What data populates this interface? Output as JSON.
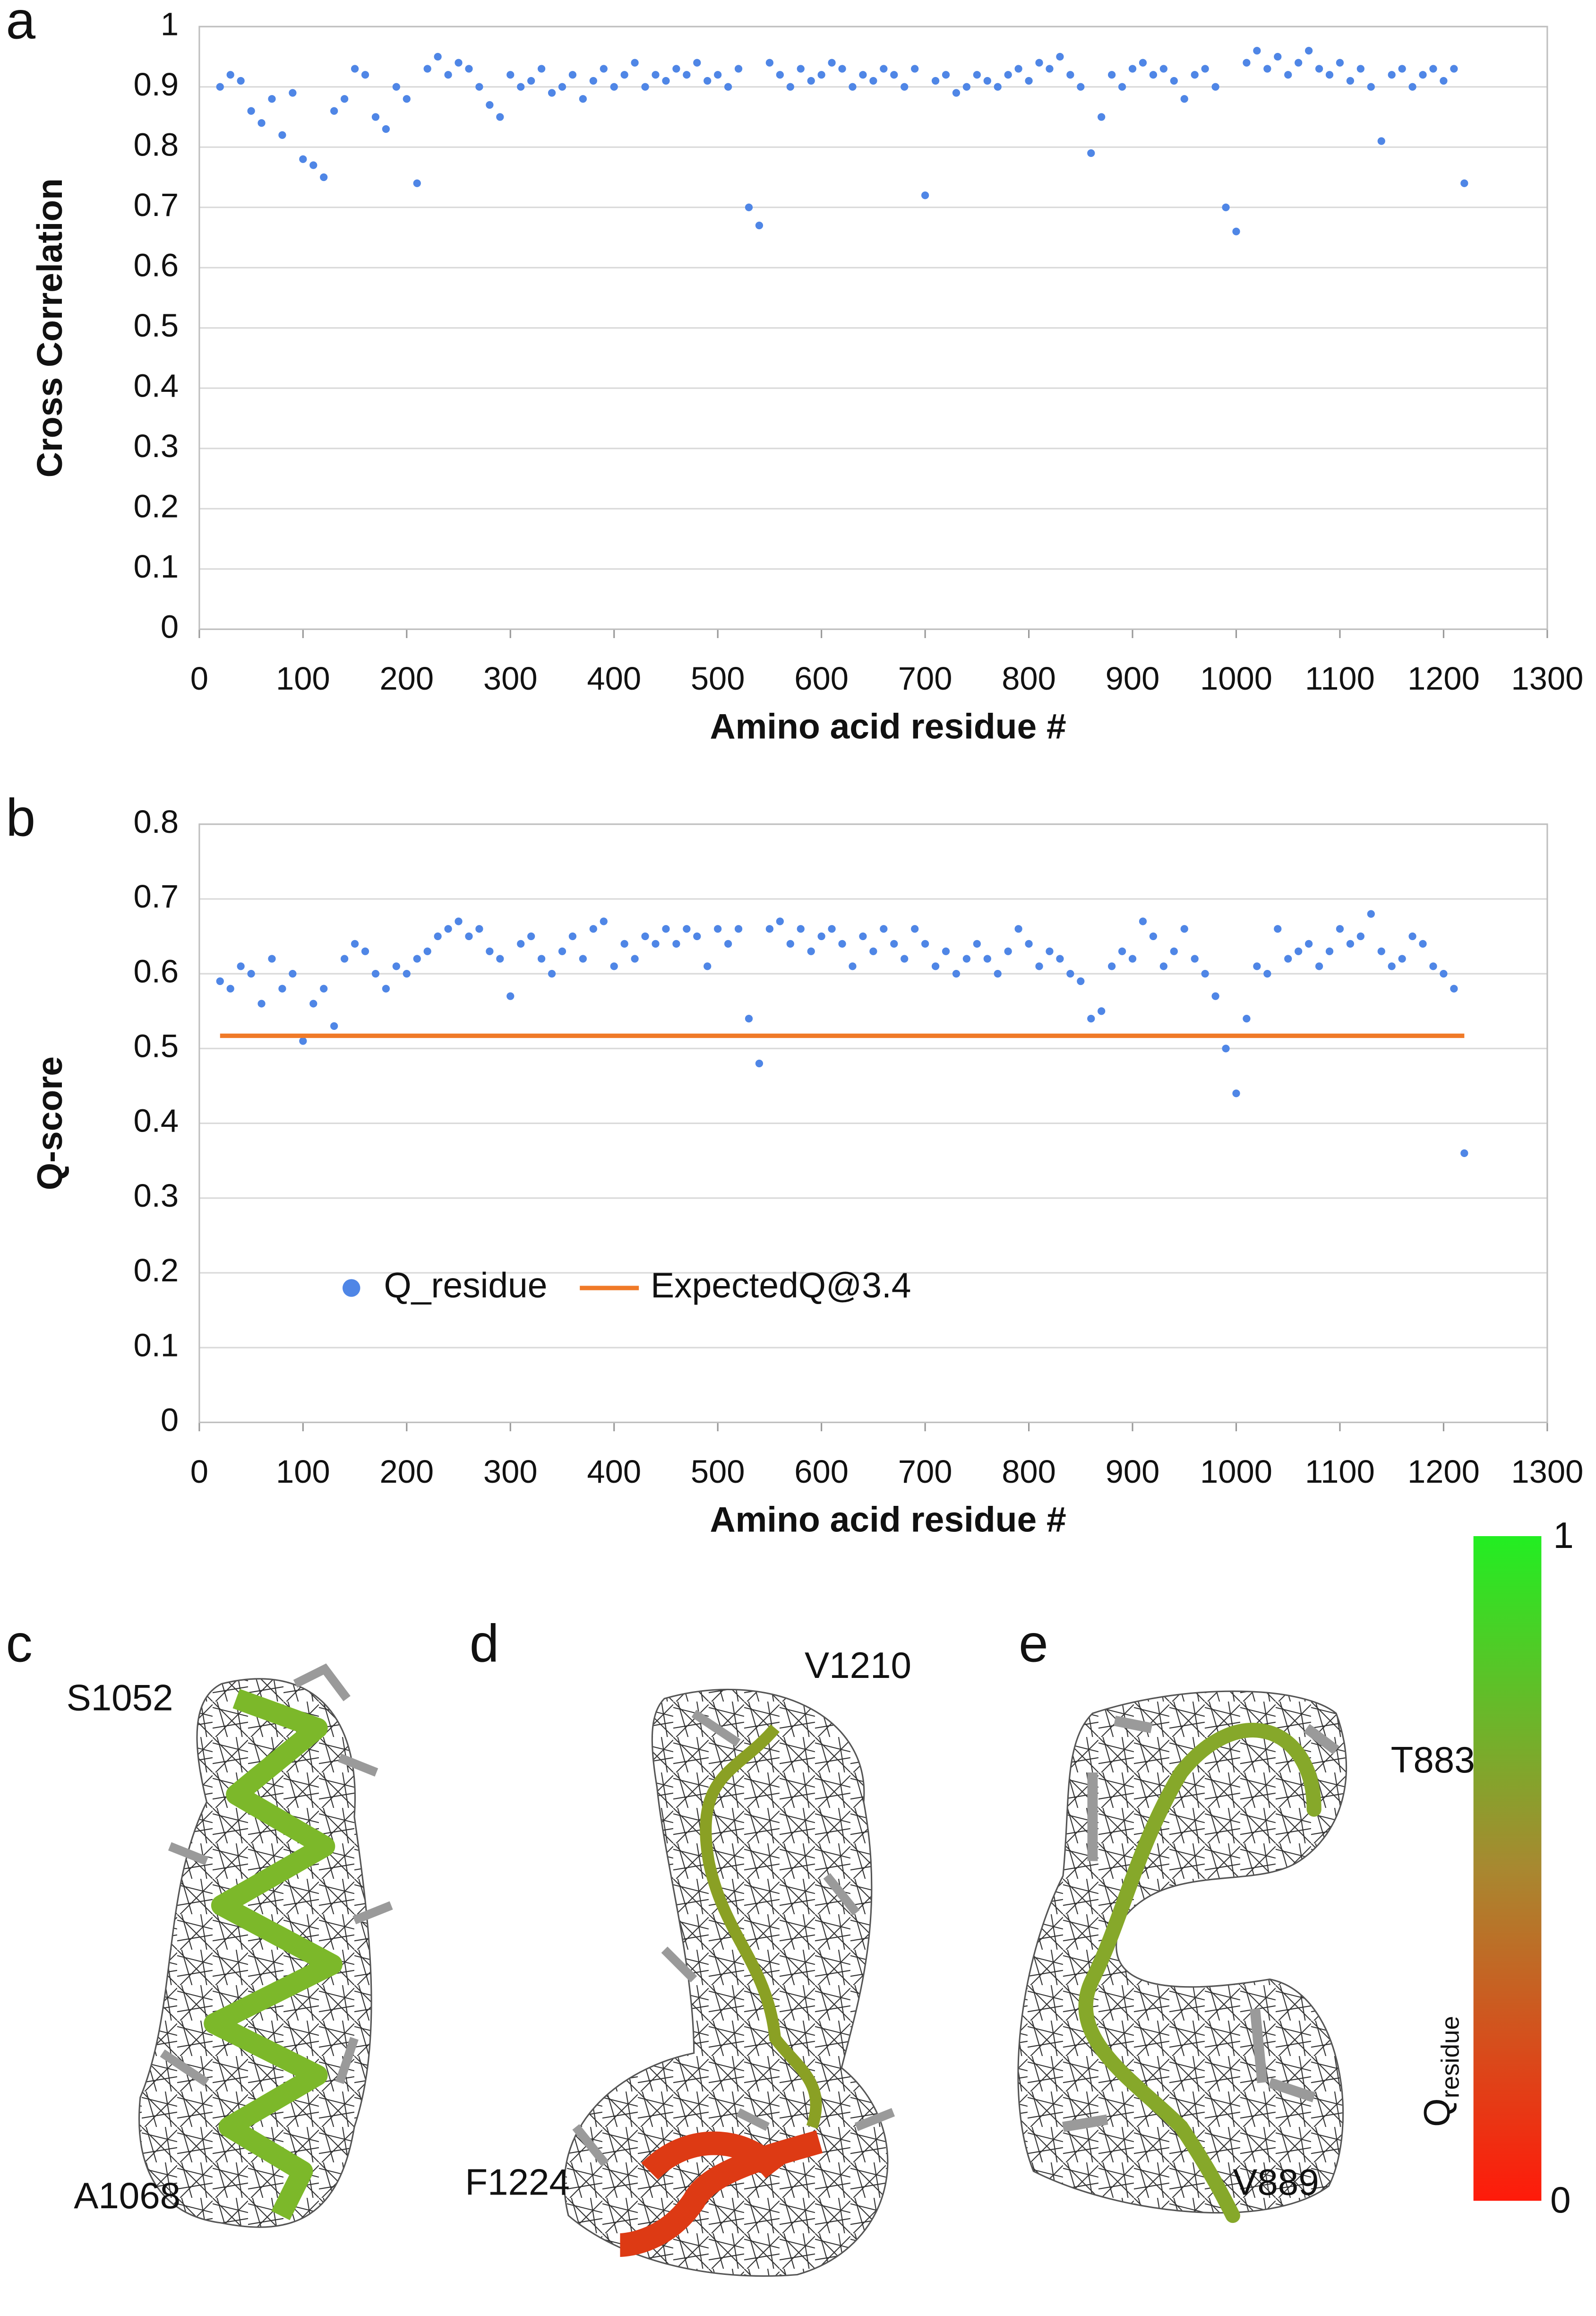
{
  "chart_data": [
    {
      "type": "scatter",
      "panel_label": "a",
      "ylabel": "Cross Correlation",
      "xlabel": "Amino acid residue #",
      "color": "#4f86e6",
      "x": [
        20,
        30,
        40,
        50,
        60,
        70,
        80,
        90,
        100,
        110,
        120,
        130,
        140,
        150,
        160,
        170,
        180,
        190,
        200,
        210,
        220,
        230,
        240,
        250,
        260,
        270,
        280,
        290,
        300,
        310,
        320,
        330,
        340,
        350,
        360,
        370,
        380,
        390,
        400,
        410,
        420,
        430,
        440,
        450,
        460,
        470,
        480,
        490,
        500,
        510,
        520,
        530,
        540,
        550,
        560,
        570,
        580,
        590,
        600,
        610,
        620,
        630,
        640,
        650,
        660,
        670,
        680,
        690,
        700,
        710,
        720,
        730,
        740,
        750,
        760,
        770,
        780,
        790,
        800,
        810,
        820,
        830,
        840,
        850,
        860,
        870,
        880,
        890,
        900,
        910,
        920,
        930,
        940,
        950,
        960,
        970,
        980,
        990,
        1000,
        1010,
        1020,
        1030,
        1040,
        1050,
        1060,
        1070,
        1080,
        1090,
        1100,
        1110,
        1120,
        1130,
        1140,
        1150,
        1160,
        1170,
        1180,
        1190,
        1200,
        1210,
        1220
      ],
      "values": [
        0.9,
        0.92,
        0.91,
        0.86,
        0.84,
        0.88,
        0.82,
        0.89,
        0.78,
        0.77,
        0.75,
        0.86,
        0.88,
        0.93,
        0.92,
        0.85,
        0.83,
        0.9,
        0.88,
        0.74,
        0.93,
        0.95,
        0.92,
        0.94,
        0.93,
        0.9,
        0.87,
        0.85,
        0.92,
        0.9,
        0.91,
        0.93,
        0.89,
        0.9,
        0.92,
        0.88,
        0.91,
        0.93,
        0.9,
        0.92,
        0.94,
        0.9,
        0.92,
        0.91,
        0.93,
        0.92,
        0.94,
        0.91,
        0.92,
        0.9,
        0.93,
        0.7,
        0.67,
        0.94,
        0.92,
        0.9,
        0.93,
        0.91,
        0.92,
        0.94,
        0.93,
        0.9,
        0.92,
        0.91,
        0.93,
        0.92,
        0.9,
        0.93,
        0.72,
        0.91,
        0.92,
        0.89,
        0.9,
        0.92,
        0.91,
        0.9,
        0.92,
        0.93,
        0.91,
        0.94,
        0.93,
        0.95,
        0.92,
        0.9,
        0.79,
        0.85,
        0.92,
        0.9,
        0.93,
        0.94,
        0.92,
        0.93,
        0.91,
        0.88,
        0.92,
        0.93,
        0.9,
        0.7,
        0.66,
        0.94,
        0.96,
        0.93,
        0.95,
        0.92,
        0.94,
        0.96,
        0.93,
        0.92,
        0.94,
        0.91,
        0.93,
        0.9,
        0.81,
        0.92,
        0.93,
        0.9,
        0.92,
        0.93,
        0.91,
        0.93,
        0.74
      ],
      "xlim": [
        0,
        1300
      ],
      "xticks": [
        0,
        100,
        200,
        300,
        400,
        500,
        600,
        700,
        800,
        900,
        1000,
        1100,
        1200,
        1300
      ],
      "ylim": [
        0,
        1
      ],
      "yticks": [
        0,
        0.1,
        0.2,
        0.3,
        0.4,
        0.5,
        0.6,
        0.7,
        0.8,
        0.9,
        1
      ],
      "grid": true
    },
    {
      "type": "scatter",
      "panel_label": "b",
      "ylabel": "Q-score",
      "xlabel": "Amino acid residue #",
      "legend": "lower left",
      "series": [
        {
          "name": "Q_residue",
          "type": "scatter",
          "color": "#4f86e6",
          "x": [
            20,
            30,
            40,
            50,
            60,
            70,
            80,
            90,
            100,
            110,
            120,
            130,
            140,
            150,
            160,
            170,
            180,
            190,
            200,
            210,
            220,
            230,
            240,
            250,
            260,
            270,
            280,
            290,
            300,
            310,
            320,
            330,
            340,
            350,
            360,
            370,
            380,
            390,
            400,
            410,
            420,
            430,
            440,
            450,
            460,
            470,
            480,
            490,
            500,
            510,
            520,
            530,
            540,
            550,
            560,
            570,
            580,
            590,
            600,
            610,
            620,
            630,
            640,
            650,
            660,
            670,
            680,
            690,
            700,
            710,
            720,
            730,
            740,
            750,
            760,
            770,
            780,
            790,
            800,
            810,
            820,
            830,
            840,
            850,
            860,
            870,
            880,
            890,
            900,
            910,
            920,
            930,
            940,
            950,
            960,
            970,
            980,
            990,
            1000,
            1010,
            1020,
            1030,
            1040,
            1050,
            1060,
            1070,
            1080,
            1090,
            1100,
            1110,
            1120,
            1130,
            1140,
            1150,
            1160,
            1170,
            1180,
            1190,
            1200,
            1210,
            1220
          ],
          "values": [
            0.59,
            0.58,
            0.61,
            0.6,
            0.56,
            0.62,
            0.58,
            0.6,
            0.51,
            0.56,
            0.58,
            0.53,
            0.62,
            0.64,
            0.63,
            0.6,
            0.58,
            0.61,
            0.6,
            0.62,
            0.63,
            0.65,
            0.66,
            0.67,
            0.65,
            0.66,
            0.63,
            0.62,
            0.57,
            0.64,
            0.65,
            0.62,
            0.6,
            0.63,
            0.65,
            0.62,
            0.66,
            0.67,
            0.61,
            0.64,
            0.62,
            0.65,
            0.64,
            0.66,
            0.64,
            0.66,
            0.65,
            0.61,
            0.66,
            0.64,
            0.66,
            0.54,
            0.48,
            0.66,
            0.67,
            0.64,
            0.66,
            0.63,
            0.65,
            0.66,
            0.64,
            0.61,
            0.65,
            0.63,
            0.66,
            0.64,
            0.62,
            0.66,
            0.64,
            0.61,
            0.63,
            0.6,
            0.62,
            0.64,
            0.62,
            0.6,
            0.63,
            0.66,
            0.64,
            0.61,
            0.63,
            0.62,
            0.6,
            0.59,
            0.54,
            0.55,
            0.61,
            0.63,
            0.62,
            0.67,
            0.65,
            0.61,
            0.63,
            0.66,
            0.62,
            0.6,
            0.57,
            0.5,
            0.44,
            0.54,
            0.61,
            0.6,
            0.66,
            0.62,
            0.63,
            0.64,
            0.61,
            0.63,
            0.66,
            0.64,
            0.65,
            0.68,
            0.63,
            0.61,
            0.62,
            0.65,
            0.64,
            0.61,
            0.6,
            0.58,
            0.36
          ]
        },
        {
          "name": "ExpectedQ@3.4",
          "type": "line",
          "color": "#f07a28",
          "x": [
            20,
            1220
          ],
          "values": [
            0.517,
            0.517
          ]
        }
      ],
      "xlim": [
        0,
        1300
      ],
      "xticks": [
        0,
        100,
        200,
        300,
        400,
        500,
        600,
        700,
        800,
        900,
        1000,
        1100,
        1200,
        1300
      ],
      "ylim": [
        0,
        0.8
      ],
      "yticks": [
        0,
        0.1,
        0.2,
        0.3,
        0.4,
        0.5,
        0.6,
        0.7,
        0.8
      ],
      "grid": true
    }
  ],
  "panels": [
    {
      "letter": "c",
      "labels": [
        "S1052",
        "A1068"
      ]
    },
    {
      "letter": "d",
      "labels": [
        "V1210",
        "F1224"
      ]
    },
    {
      "letter": "e",
      "labels": [
        "T883",
        "V889"
      ]
    }
  ],
  "colorbar": {
    "title": "Q",
    "title_sub": "residue",
    "max": 1,
    "min": 0
  }
}
